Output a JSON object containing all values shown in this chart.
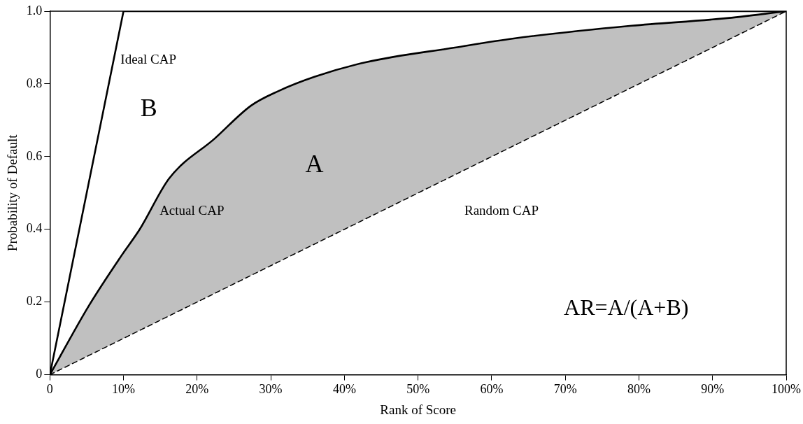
{
  "chart_data": {
    "type": "line",
    "xlabel": "Rank of Score",
    "ylabel": "Probability of Default",
    "xlim": [
      0,
      100
    ],
    "xticks": [
      0,
      {
        "value": 10,
        "label": "10%"
      },
      {
        "value": 20,
        "label": "20%"
      },
      {
        "value": 30,
        "label": "30%"
      },
      {
        "value": 40,
        "label": "40%"
      },
      {
        "value": 50,
        "label": "50%"
      },
      {
        "value": 60,
        "label": "60%"
      },
      {
        "value": 70,
        "label": "70%"
      },
      {
        "value": 80,
        "label": "80%"
      },
      {
        "value": 90,
        "label": "90%"
      },
      {
        "value": 100,
        "label": "100%"
      }
    ],
    "ylim": [
      0,
      1
    ],
    "yticks": [
      0,
      0.2,
      0.4,
      0.6,
      0.8,
      {
        "value": 1,
        "label": "1.0"
      }
    ],
    "grid": false,
    "legend": false,
    "marker": "none",
    "series": [
      {
        "color": "#000000",
        "line_style": "solid",
        "x": [
          0,
          10,
          100
        ],
        "values": [
          0,
          1,
          1
        ]
      },
      {
        "color": "#000000",
        "line_style": "solid",
        "x": [
          0,
          5.3,
          9.8,
          12.2,
          16.2,
          22.4,
          27.3,
          31,
          36,
          43,
          55,
          63,
          79,
          91.5,
          100
        ],
        "values": [
          0,
          0.19,
          0.33,
          0.4,
          0.54,
          0.65,
          0.74,
          0.78,
          0.82,
          0.86,
          0.9,
          0.925,
          0.96,
          0.98,
          1
        ],
        "lower": [
          0,
          0.053,
          0.098,
          0.122,
          0.162,
          0.224,
          0.273,
          0.31,
          0.36,
          0.43,
          0.55,
          0.63,
          0.79,
          0.915,
          1
        ],
        "upper": [
          0,
          0.19,
          0.33,
          0.4,
          0.54,
          0.65,
          0.74,
          0.78,
          0.82,
          0.86,
          0.9,
          0.925,
          0.96,
          0.98,
          1
        ]
      },
      {
        "color": "#000000",
        "line_style": "dashed",
        "x": [
          0,
          100
        ],
        "values": [
          0,
          1
        ]
      }
    ],
    "annotations": [
      "Ideal CAP",
      "B",
      "A",
      "Actual CAP",
      "Random CAP",
      "AR=A/(A+B)"
    ]
  }
}
